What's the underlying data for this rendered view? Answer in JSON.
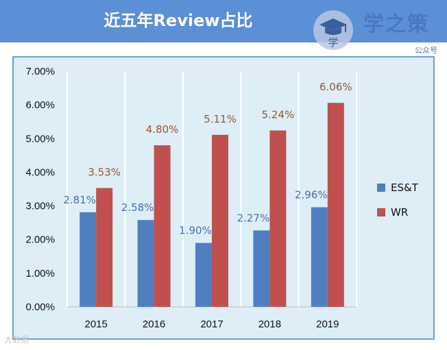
{
  "header": {
    "title": "近五年Review占比",
    "brand_name": "学之策",
    "brand_sub": "公众号",
    "logo_char": "学"
  },
  "watermark": "大数据",
  "colors": {
    "est": "#4f7fc1",
    "wr": "#c0504d",
    "title_bar": "#5b8fd6",
    "panel_bg": "#ddeef6"
  },
  "chart_data": {
    "type": "bar",
    "title": "近五年Review占比",
    "categories": [
      "2015",
      "2016",
      "2017",
      "2018",
      "2019"
    ],
    "series": [
      {
        "name": "ES&T",
        "values": [
          2.81,
          2.58,
          1.9,
          2.27,
          2.96
        ],
        "labels": [
          "2.81%",
          "2.58%",
          "1.90%",
          "2.27%",
          "2.96%"
        ]
      },
      {
        "name": "WR",
        "values": [
          3.53,
          4.8,
          5.11,
          5.24,
          6.06
        ],
        "labels": [
          "3.53%",
          "4.80%",
          "5.11%",
          "5.24%",
          "6.06%"
        ]
      }
    ],
    "ylim": [
      0,
      7
    ],
    "yticks": [
      0,
      1,
      2,
      3,
      4,
      5,
      6,
      7
    ],
    "ytick_labels": [
      "0.00%",
      "1.00%",
      "2.00%",
      "3.00%",
      "4.00%",
      "5.00%",
      "6.00%",
      "7.00%"
    ],
    "xlabel": "",
    "ylabel": "",
    "grid": "vertical",
    "legend": "right"
  }
}
